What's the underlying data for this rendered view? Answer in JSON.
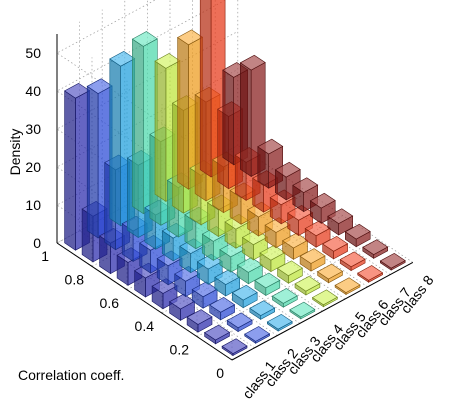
{
  "chart_data": {
    "type": "bar3d",
    "title": "",
    "xlabel": "",
    "ylabel": "Correlation coeff.",
    "zlabel": "Density",
    "series": [
      {
        "name": "class 1",
        "color": "#2b2bb5",
        "values": [
          0.5,
          1,
          2,
          3,
          4,
          5,
          6,
          8,
          12,
          40
        ]
      },
      {
        "name": "class 2",
        "color": "#2a4ce0",
        "values": [
          0.5,
          1,
          2,
          3,
          4,
          5,
          6,
          8,
          21,
          38
        ]
      },
      {
        "name": "class 3",
        "color": "#1fa6e8",
        "values": [
          0.5,
          1,
          2,
          3,
          4,
          5,
          6,
          9,
          19,
          42
        ]
      },
      {
        "name": "class 4",
        "color": "#4de3b4",
        "values": [
          0.5,
          1,
          2,
          3,
          4,
          5,
          7,
          13,
          22,
          44
        ]
      },
      {
        "name": "class 5",
        "color": "#c6f03a",
        "values": [
          0.5,
          1,
          2,
          3,
          4,
          5,
          7,
          13,
          27,
          35
        ]
      },
      {
        "name": "class 6",
        "color": "#f9a21b",
        "values": [
          0.5,
          1,
          2,
          3,
          4,
          5,
          7,
          12,
          26,
          38
        ]
      },
      {
        "name": "class 7",
        "color": "#f23a18",
        "values": [
          0.5,
          1,
          2,
          3,
          4,
          5,
          7,
          10,
          19,
          52
        ]
      },
      {
        "name": "class 8",
        "color": "#8e1b1b",
        "values": [
          0.5,
          1,
          2,
          3,
          4,
          5,
          6,
          9,
          28,
          23
        ]
      }
    ],
    "y_bins": [
      "0",
      "0.1",
      "0.2",
      "0.3",
      "0.4",
      "0.5",
      "0.6",
      "0.7",
      "0.8",
      "0.9"
    ],
    "y_ticks": [
      "0",
      "0.2",
      "0.4",
      "0.6",
      "0.8",
      "1"
    ],
    "z_ticks": [
      "0",
      "10",
      "20",
      "30",
      "40",
      "50"
    ],
    "ylim": [
      0,
      1
    ],
    "zlim": [
      0,
      55
    ],
    "grid": true
  }
}
